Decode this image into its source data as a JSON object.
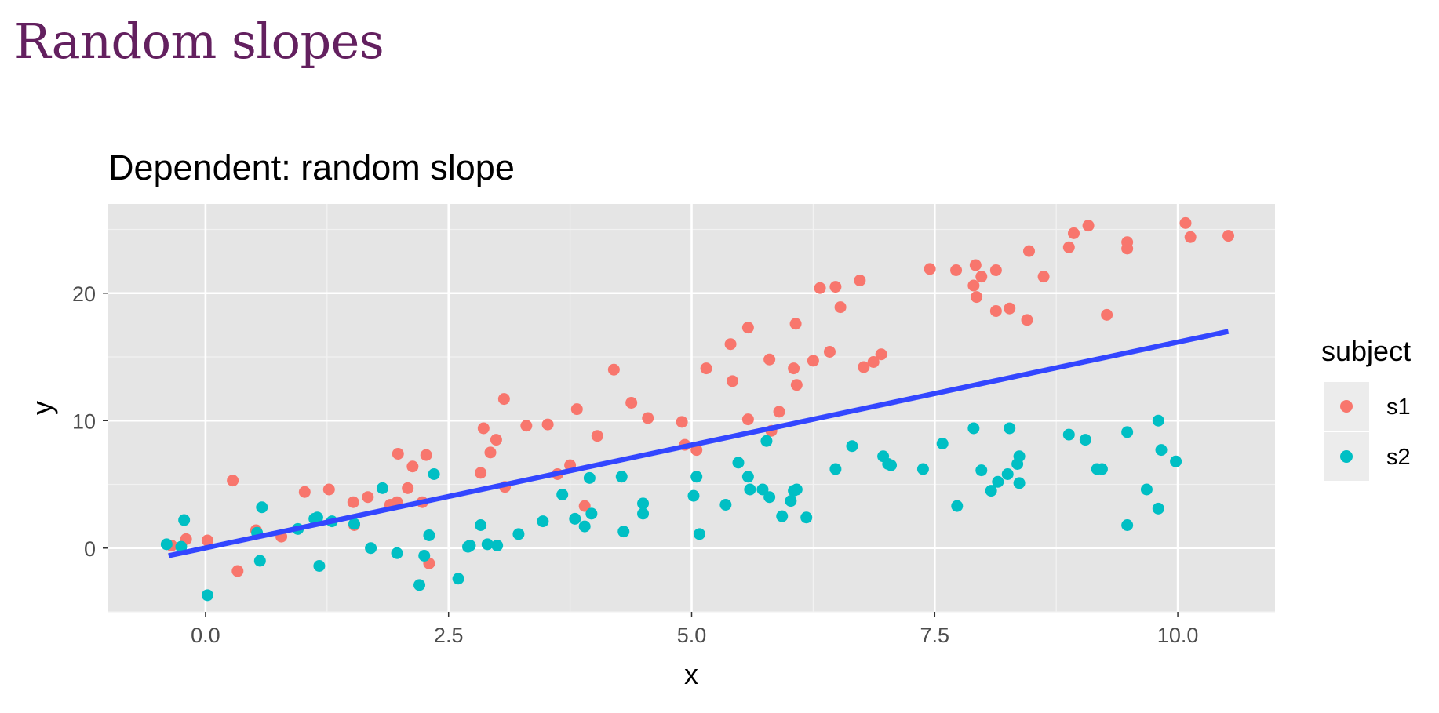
{
  "slide": {
    "title": "Random slopes"
  },
  "chart_data": {
    "type": "scatter",
    "title": "Dependent: random slope",
    "xlabel": "x",
    "ylabel": "y",
    "xlim": [
      -1.0,
      11.0
    ],
    "ylim": [
      -5.0,
      27.0
    ],
    "x_ticks": [
      0.0,
      2.5,
      5.0,
      7.5,
      10.0
    ],
    "x_tick_labels": [
      "0.0",
      "2.5",
      "5.0",
      "7.5",
      "10.0"
    ],
    "y_ticks": [
      0,
      10,
      20
    ],
    "y_tick_labels": [
      "0",
      "10",
      "20"
    ],
    "grid": true,
    "background": "#e5e5e5",
    "legend": {
      "title": "subject",
      "position": "right"
    },
    "series": [
      {
        "name": "s1",
        "color": "#f8766d",
        "points": [
          [
            -0.35,
            0.2
          ],
          [
            -0.2,
            0.7
          ],
          [
            0.02,
            0.6
          ],
          [
            0.28,
            5.3
          ],
          [
            0.33,
            -1.8
          ],
          [
            0.52,
            1.4
          ],
          [
            0.78,
            0.9
          ],
          [
            1.02,
            4.4
          ],
          [
            1.27,
            4.6
          ],
          [
            1.52,
            3.6
          ],
          [
            1.53,
            1.8
          ],
          [
            1.67,
            4.0
          ],
          [
            1.9,
            3.4
          ],
          [
            1.97,
            3.6
          ],
          [
            1.98,
            7.4
          ],
          [
            2.08,
            4.7
          ],
          [
            2.13,
            6.4
          ],
          [
            2.23,
            3.6
          ],
          [
            2.27,
            7.3
          ],
          [
            2.3,
            -1.2
          ],
          [
            2.83,
            5.9
          ],
          [
            2.86,
            9.4
          ],
          [
            2.93,
            7.5
          ],
          [
            2.99,
            8.5
          ],
          [
            3.07,
            11.7
          ],
          [
            3.08,
            4.8
          ],
          [
            3.3,
            9.6
          ],
          [
            3.52,
            9.7
          ],
          [
            3.62,
            5.8
          ],
          [
            3.75,
            6.5
          ],
          [
            3.82,
            10.9
          ],
          [
            3.9,
            3.3
          ],
          [
            4.03,
            8.8
          ],
          [
            4.2,
            14.0
          ],
          [
            4.38,
            11.4
          ],
          [
            4.55,
            10.2
          ],
          [
            4.9,
            9.9
          ],
          [
            4.93,
            8.1
          ],
          [
            5.05,
            7.7
          ],
          [
            5.15,
            14.1
          ],
          [
            5.4,
            16.0
          ],
          [
            5.42,
            13.1
          ],
          [
            5.58,
            17.3
          ],
          [
            5.58,
            10.1
          ],
          [
            5.8,
            14.8
          ],
          [
            5.82,
            9.2
          ],
          [
            5.9,
            10.7
          ],
          [
            6.05,
            14.1
          ],
          [
            6.07,
            17.6
          ],
          [
            6.08,
            12.8
          ],
          [
            6.25,
            14.7
          ],
          [
            6.32,
            20.4
          ],
          [
            6.42,
            15.4
          ],
          [
            6.48,
            20.5
          ],
          [
            6.53,
            18.9
          ],
          [
            6.73,
            21.0
          ],
          [
            6.77,
            14.2
          ],
          [
            6.87,
            14.6
          ],
          [
            6.95,
            15.2
          ],
          [
            7.45,
            21.9
          ],
          [
            7.72,
            21.8
          ],
          [
            7.9,
            20.6
          ],
          [
            7.92,
            22.2
          ],
          [
            7.93,
            19.7
          ],
          [
            7.98,
            21.3
          ],
          [
            8.13,
            21.8
          ],
          [
            8.13,
            18.6
          ],
          [
            8.27,
            18.8
          ],
          [
            8.45,
            17.9
          ],
          [
            8.47,
            23.3
          ],
          [
            8.62,
            21.3
          ],
          [
            8.88,
            23.6
          ],
          [
            8.93,
            24.7
          ],
          [
            9.08,
            25.3
          ],
          [
            9.27,
            18.3
          ],
          [
            9.48,
            24.0
          ],
          [
            9.48,
            23.5
          ],
          [
            10.08,
            25.5
          ],
          [
            10.13,
            24.4
          ],
          [
            10.52,
            24.5
          ]
        ]
      },
      {
        "name": "s2",
        "color": "#00bfc4",
        "points": [
          [
            -0.4,
            0.3
          ],
          [
            -0.25,
            0.1
          ],
          [
            -0.22,
            2.2
          ],
          [
            0.02,
            -3.7
          ],
          [
            0.53,
            1.2
          ],
          [
            0.56,
            -1.0
          ],
          [
            0.58,
            3.2
          ],
          [
            0.95,
            1.5
          ],
          [
            1.12,
            2.3
          ],
          [
            1.15,
            2.4
          ],
          [
            1.17,
            -1.4
          ],
          [
            1.3,
            2.1
          ],
          [
            1.53,
            1.9
          ],
          [
            1.7,
            0.0
          ],
          [
            1.82,
            4.7
          ],
          [
            1.97,
            -0.4
          ],
          [
            2.2,
            -2.9
          ],
          [
            2.25,
            -0.6
          ],
          [
            2.3,
            1.0
          ],
          [
            2.35,
            5.8
          ],
          [
            2.6,
            -2.4
          ],
          [
            2.7,
            0.1
          ],
          [
            2.72,
            0.2
          ],
          [
            2.83,
            1.8
          ],
          [
            2.9,
            0.3
          ],
          [
            3.0,
            0.2
          ],
          [
            3.22,
            1.1
          ],
          [
            3.47,
            2.1
          ],
          [
            3.67,
            4.2
          ],
          [
            3.8,
            2.3
          ],
          [
            3.9,
            1.7
          ],
          [
            3.95,
            5.5
          ],
          [
            3.97,
            2.7
          ],
          [
            4.28,
            5.6
          ],
          [
            4.3,
            1.3
          ],
          [
            4.5,
            3.5
          ],
          [
            4.5,
            2.7
          ],
          [
            5.02,
            4.1
          ],
          [
            5.05,
            5.6
          ],
          [
            5.08,
            1.1
          ],
          [
            5.35,
            3.4
          ],
          [
            5.48,
            6.7
          ],
          [
            5.58,
            5.6
          ],
          [
            5.6,
            4.6
          ],
          [
            5.73,
            4.6
          ],
          [
            5.77,
            8.4
          ],
          [
            5.8,
            4.0
          ],
          [
            5.93,
            2.5
          ],
          [
            6.02,
            3.7
          ],
          [
            6.05,
            4.5
          ],
          [
            6.08,
            4.6
          ],
          [
            6.18,
            2.4
          ],
          [
            6.48,
            6.2
          ],
          [
            6.65,
            8.0
          ],
          [
            6.97,
            7.2
          ],
          [
            7.02,
            6.6
          ],
          [
            7.05,
            6.5
          ],
          [
            7.38,
            6.2
          ],
          [
            7.58,
            8.2
          ],
          [
            7.73,
            3.3
          ],
          [
            7.9,
            9.4
          ],
          [
            7.98,
            6.1
          ],
          [
            8.08,
            4.5
          ],
          [
            8.15,
            5.2
          ],
          [
            8.25,
            5.8
          ],
          [
            8.27,
            9.4
          ],
          [
            8.35,
            6.6
          ],
          [
            8.37,
            7.2
          ],
          [
            8.37,
            5.1
          ],
          [
            8.88,
            8.9
          ],
          [
            9.05,
            8.5
          ],
          [
            9.17,
            6.2
          ],
          [
            9.22,
            6.2
          ],
          [
            9.48,
            9.1
          ],
          [
            9.48,
            1.8
          ],
          [
            9.68,
            4.6
          ],
          [
            9.8,
            10.0
          ],
          [
            9.8,
            3.1
          ],
          [
            9.83,
            7.7
          ],
          [
            9.98,
            6.8
          ]
        ]
      }
    ],
    "fit_line": {
      "color": "#3346ff",
      "x": [
        -0.38,
        10.52
      ],
      "y": [
        -0.6,
        17.0
      ]
    }
  }
}
